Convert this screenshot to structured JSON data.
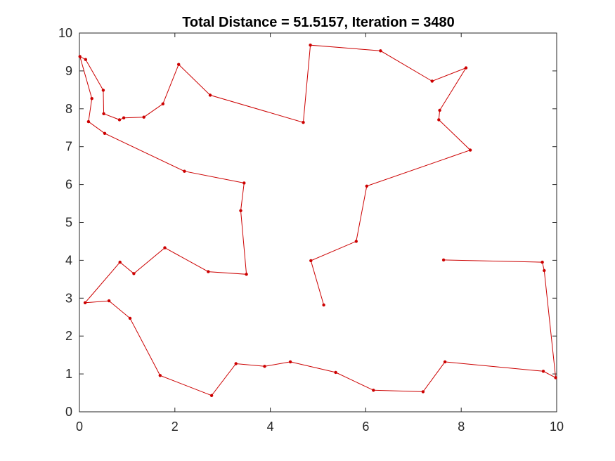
{
  "chart_data": {
    "type": "line",
    "title": "Total Distance = 51.5157, Iteration = 3480",
    "xlabel": "",
    "ylabel": "",
    "xlim": [
      0,
      10
    ],
    "ylim": [
      0,
      10
    ],
    "xticks": [
      "0",
      "2",
      "4",
      "6",
      "8",
      "10"
    ],
    "yticks": [
      "0",
      "1",
      "2",
      "3",
      "4",
      "5",
      "6",
      "7",
      "8",
      "9",
      "10"
    ],
    "grid": false,
    "legend": "none",
    "series": [
      {
        "color": "#cc0000",
        "marker": "dot",
        "points": [
          [
            5.12,
            2.82
          ],
          [
            4.85,
            3.99
          ],
          [
            5.8,
            4.5
          ],
          [
            6.02,
            5.96
          ],
          [
            8.19,
            6.91
          ],
          [
            7.53,
            7.71
          ],
          [
            7.55,
            7.96
          ],
          [
            8.1,
            9.08
          ],
          [
            7.39,
            8.73
          ],
          [
            6.31,
            9.53
          ],
          [
            4.84,
            9.68
          ],
          [
            4.69,
            7.64
          ],
          [
            2.74,
            8.36
          ],
          [
            2.08,
            9.17
          ],
          [
            1.75,
            8.13
          ],
          [
            1.35,
            7.78
          ],
          [
            0.93,
            7.76
          ],
          [
            0.84,
            7.71
          ],
          [
            0.51,
            7.87
          ],
          [
            0.5,
            8.49
          ],
          [
            0.13,
            9.3
          ],
          [
            0.01,
            9.38
          ],
          [
            0.26,
            8.27
          ],
          [
            0.19,
            7.66
          ],
          [
            0.53,
            7.35
          ],
          [
            2.2,
            6.35
          ],
          [
            3.45,
            6.04
          ],
          [
            3.38,
            5.31
          ],
          [
            3.5,
            3.63
          ],
          [
            2.7,
            3.7
          ],
          [
            1.79,
            4.33
          ],
          [
            1.14,
            3.65
          ],
          [
            0.85,
            3.95
          ],
          [
            0.12,
            2.88
          ],
          [
            0.62,
            2.93
          ],
          [
            1.06,
            2.47
          ],
          [
            1.69,
            0.96
          ],
          [
            2.77,
            0.43
          ],
          [
            3.28,
            1.27
          ],
          [
            3.88,
            1.2
          ],
          [
            4.42,
            1.32
          ],
          [
            5.37,
            1.04
          ],
          [
            6.16,
            0.57
          ],
          [
            7.2,
            0.53
          ],
          [
            7.66,
            1.32
          ],
          [
            9.72,
            1.07
          ],
          [
            9.98,
            0.9
          ],
          [
            9.74,
            3.73
          ],
          [
            9.7,
            3.95
          ],
          [
            7.63,
            4.01
          ]
        ]
      }
    ]
  }
}
